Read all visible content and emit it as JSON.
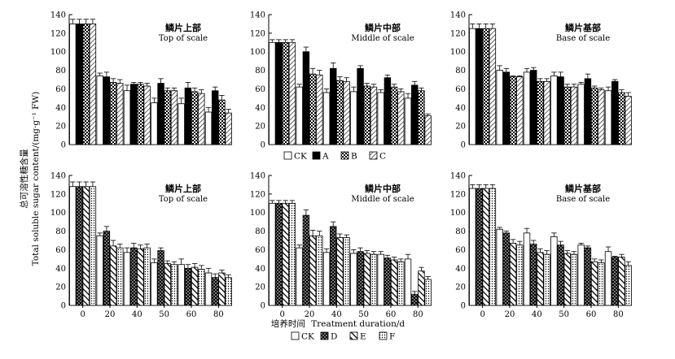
{
  "y_axis_title": {
    "cn": "总可溶性糖含量",
    "en": "Total soluble sugar content/(mg·g⁻¹ FW)"
  },
  "x_axis_title": {
    "cn": "培养时间",
    "en": "Treatment duration/d"
  },
  "legends": [
    {
      "items": [
        {
          "label": "CK",
          "pattern": "white"
        },
        {
          "label": "A",
          "pattern": "black"
        },
        {
          "label": "B",
          "pattern": "checker"
        },
        {
          "label": "C",
          "pattern": "hatch"
        }
      ]
    },
    {
      "items": [
        {
          "label": "CK",
          "pattern": "white"
        },
        {
          "label": "D",
          "pattern": "blackdots"
        },
        {
          "label": "E",
          "pattern": "diagonal"
        },
        {
          "label": "F",
          "pattern": "dots"
        }
      ]
    }
  ],
  "colors": {
    "ink": "#000000",
    "paper": "#ffffff"
  },
  "chart_data": [
    {
      "type": "bar",
      "row": 0,
      "col": 0,
      "title_cn": "鳞片上部",
      "title_en": "Top of scale",
      "categories": [
        "0",
        "20",
        "40",
        "50",
        "60",
        "80"
      ],
      "ylim": [
        0,
        140
      ],
      "yticks": [
        0,
        20,
        40,
        60,
        80,
        100,
        120,
        140
      ],
      "series": [
        {
          "name": "CK",
          "pattern": "white",
          "values": [
            130,
            74,
            58,
            45,
            44,
            35
          ],
          "errors": [
            5,
            3,
            6,
            5,
            6,
            5
          ]
        },
        {
          "name": "A",
          "pattern": "black",
          "values": [
            130,
            73,
            65,
            66,
            61,
            58
          ],
          "errors": [
            5,
            5,
            2,
            5,
            6,
            4
          ]
        },
        {
          "name": "B",
          "pattern": "checker",
          "values": [
            130,
            67,
            65,
            58,
            57,
            48
          ],
          "errors": [
            5,
            4,
            2,
            3,
            4,
            5
          ]
        },
        {
          "name": "C",
          "pattern": "hatch",
          "values": [
            130,
            66,
            63,
            58,
            55,
            34
          ],
          "errors": [
            5,
            4,
            3,
            3,
            4,
            4
          ]
        }
      ],
      "show_xticks": false
    },
    {
      "type": "bar",
      "row": 0,
      "col": 1,
      "title_cn": "鳞片中部",
      "title_en": "Middle of scale",
      "categories": [
        "0",
        "20",
        "40",
        "50",
        "60",
        "80"
      ],
      "ylim": [
        0,
        140
      ],
      "yticks": [
        0,
        20,
        40,
        60,
        80,
        100,
        120,
        140
      ],
      "series": [
        {
          "name": "CK",
          "pattern": "white",
          "values": [
            110,
            62,
            56,
            57,
            56,
            50
          ],
          "errors": [
            3,
            3,
            4,
            5,
            3,
            5
          ]
        },
        {
          "name": "A",
          "pattern": "black",
          "values": [
            110,
            100,
            82,
            82,
            72,
            64
          ],
          "errors": [
            3,
            5,
            6,
            3,
            3,
            4
          ]
        },
        {
          "name": "B",
          "pattern": "checker",
          "values": [
            110,
            76,
            69,
            63,
            62,
            58
          ],
          "errors": [
            3,
            6,
            4,
            3,
            3,
            3
          ]
        },
        {
          "name": "C",
          "pattern": "hatch",
          "values": [
            110,
            75,
            68,
            62,
            57,
            31
          ],
          "errors": [
            3,
            5,
            4,
            3,
            3,
            2
          ]
        }
      ],
      "show_xticks": false
    },
    {
      "type": "bar",
      "row": 0,
      "col": 2,
      "title_cn": "鳞片基部",
      "title_en": "Base of scale",
      "categories": [
        "0",
        "20",
        "40",
        "50",
        "60",
        "80"
      ],
      "ylim": [
        0,
        140
      ],
      "yticks": [
        0,
        20,
        40,
        60,
        80,
        100,
        120,
        140
      ],
      "series": [
        {
          "name": "CK",
          "pattern": "white",
          "values": [
            125,
            80,
            78,
            74,
            65,
            58
          ],
          "errors": [
            5,
            5,
            4,
            4,
            2,
            4
          ]
        },
        {
          "name": "A",
          "pattern": "black",
          "values": [
            125,
            78,
            80,
            73,
            71,
            68
          ],
          "errors": [
            5,
            4,
            3,
            5,
            5,
            2
          ]
        },
        {
          "name": "B",
          "pattern": "checker",
          "values": [
            125,
            73,
            68,
            62,
            61,
            56
          ],
          "errors": [
            5,
            1,
            3,
            3,
            2,
            3
          ]
        },
        {
          "name": "C",
          "pattern": "hatch",
          "values": [
            125,
            73,
            68,
            62,
            59,
            52
          ],
          "errors": [
            5,
            1,
            3,
            3,
            2,
            4
          ]
        }
      ],
      "show_xticks": false
    },
    {
      "type": "bar",
      "row": 1,
      "col": 0,
      "title_cn": "鳞片上部",
      "title_en": "Top of scale",
      "categories": [
        "0",
        "20",
        "40",
        "50",
        "60",
        "80"
      ],
      "ylim": [
        0,
        140
      ],
      "yticks": [
        0,
        20,
        40,
        60,
        80,
        100,
        120,
        140
      ],
      "series": [
        {
          "name": "CK",
          "pattern": "white",
          "values": [
            128,
            75,
            57,
            46,
            44,
            35
          ],
          "errors": [
            5,
            3,
            5,
            4,
            6,
            5
          ]
        },
        {
          "name": "D",
          "pattern": "blackdots",
          "values": [
            128,
            80,
            62,
            59,
            40,
            30
          ],
          "errors": [
            5,
            5,
            5,
            3,
            4,
            4
          ]
        },
        {
          "name": "E",
          "pattern": "diagonal",
          "values": [
            128,
            64,
            61,
            45,
            41,
            35
          ],
          "errors": [
            5,
            6,
            4,
            3,
            4,
            3
          ]
        },
        {
          "name": "F",
          "pattern": "dots",
          "values": [
            128,
            62,
            62,
            44,
            39,
            30
          ],
          "errors": [
            5,
            4,
            4,
            3,
            4,
            3
          ]
        }
      ],
      "show_xticks": true
    },
    {
      "type": "bar",
      "row": 1,
      "col": 1,
      "title_cn": "鳞片中部",
      "title_en": "Middle of scale",
      "categories": [
        "0",
        "20",
        "40",
        "50",
        "60",
        "80"
      ],
      "ylim": [
        0,
        140
      ],
      "yticks": [
        0,
        20,
        40,
        60,
        80,
        100,
        120,
        140
      ],
      "series": [
        {
          "name": "CK",
          "pattern": "white",
          "values": [
            110,
            62,
            57,
            56,
            55,
            50
          ],
          "errors": [
            3,
            3,
            4,
            4,
            3,
            5
          ]
        },
        {
          "name": "D",
          "pattern": "blackdots",
          "values": [
            110,
            97,
            85,
            58,
            51,
            12
          ],
          "errors": [
            3,
            6,
            5,
            4,
            3,
            3
          ]
        },
        {
          "name": "E",
          "pattern": "diagonal",
          "values": [
            110,
            75,
            73,
            56,
            49,
            37
          ],
          "errors": [
            3,
            6,
            4,
            3,
            3,
            4
          ]
        },
        {
          "name": "F",
          "pattern": "dots",
          "values": [
            110,
            75,
            73,
            55,
            47,
            28
          ],
          "errors": [
            3,
            5,
            3,
            3,
            3,
            3
          ]
        }
      ],
      "show_xticks": true
    },
    {
      "type": "bar",
      "row": 1,
      "col": 2,
      "title_cn": "鳞片基部",
      "title_en": "Base of scale",
      "categories": [
        "0",
        "20",
        "40",
        "50",
        "60",
        "80"
      ],
      "ylim": [
        0,
        140
      ],
      "yticks": [
        0,
        20,
        40,
        60,
        80,
        100,
        120,
        140
      ],
      "series": [
        {
          "name": "CK",
          "pattern": "white",
          "values": [
            126,
            82,
            78,
            74,
            65,
            58
          ],
          "errors": [
            4,
            2,
            5,
            4,
            2,
            5
          ]
        },
        {
          "name": "D",
          "pattern": "blackdots",
          "values": [
            126,
            78,
            66,
            65,
            62,
            52
          ],
          "errors": [
            4,
            2,
            4,
            4,
            2,
            1
          ]
        },
        {
          "name": "E",
          "pattern": "diagonal",
          "values": [
            126,
            67,
            57,
            56,
            47,
            52
          ],
          "errors": [
            4,
            4,
            4,
            3,
            3,
            3
          ]
        },
        {
          "name": "F",
          "pattern": "dots",
          "values": [
            126,
            65,
            55,
            55,
            46,
            43
          ],
          "errors": [
            4,
            4,
            4,
            3,
            3,
            4
          ]
        }
      ],
      "show_xticks": true
    }
  ]
}
